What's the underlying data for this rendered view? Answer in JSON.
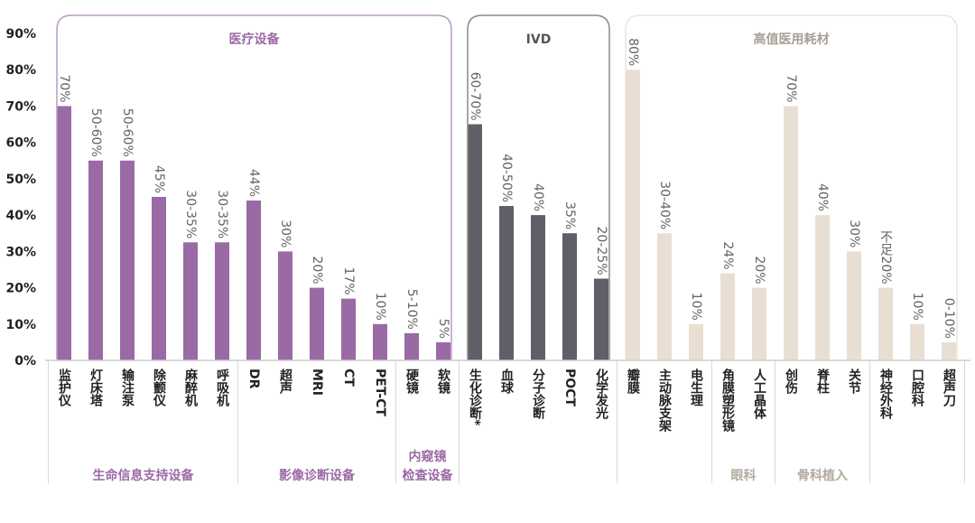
{
  "chart_data": {
    "type": "bar",
    "ylim": [
      0,
      90
    ],
    "yticks": [
      {
        "value": 0,
        "label": "0%"
      },
      {
        "value": 10,
        "label": "10%"
      },
      {
        "value": 20,
        "label": "20%"
      },
      {
        "value": 30,
        "label": "30%"
      },
      {
        "value": 40,
        "label": "40%"
      },
      {
        "value": 50,
        "label": "50%"
      },
      {
        "value": 60,
        "label": "60%"
      },
      {
        "value": 70,
        "label": "70%"
      },
      {
        "value": 80,
        "label": "80%"
      },
      {
        "value": 90,
        "label": "90%"
      }
    ],
    "groups": [
      {
        "title": "医疗设备",
        "color": "#9a6aa5",
        "title_color": "#9a6aa5",
        "border_color": "#b99bc2",
        "label_color": "#9a6aa5",
        "subgroups": [
          {
            "label": [
              "生命信息支持设备"
            ],
            "categories": [
              "监护仪",
              "灯床塔",
              "输注泵",
              "除颤仪",
              "麻醉机",
              "呼吸机"
            ],
            "values": [
              70,
              55,
              55,
              45,
              32.5,
              32.5
            ],
            "value_labels": [
              "70%",
              "50-60%",
              "50-60%",
              "45%",
              "30-35%",
              "30-35%"
            ]
          },
          {
            "label": [
              "影像诊断设备"
            ],
            "categories": [
              "DR",
              "超声",
              "MRI",
              "CT",
              "PET-CT"
            ],
            "values": [
              44,
              30,
              20,
              17,
              10
            ],
            "value_labels": [
              "44%",
              "30%",
              "20%",
              "17%",
              "10%"
            ]
          },
          {
            "label": [
              "内窥镜",
              "检查设备"
            ],
            "categories": [
              "硬镜",
              "软镜"
            ],
            "values": [
              7.5,
              5
            ],
            "value_labels": [
              "5-10%",
              "5%"
            ]
          }
        ]
      },
      {
        "title": "IVD",
        "color": "#5e5f67",
        "title_color": "#555555",
        "border_color": "#8a8a8f",
        "label_color": "#555555",
        "subgroups": [
          {
            "categories": [
              "生化诊断*",
              "血球",
              "分子诊断",
              "POCT",
              "化学发光"
            ],
            "values": [
              65,
              42.5,
              40,
              35,
              22.5
            ],
            "value_labels": [
              "60-70%",
              "40-50%",
              "40%",
              "35%",
              "20-25%"
            ]
          }
        ]
      },
      {
        "title": "高值医用耗材",
        "color": "#e8dfd2",
        "title_color": "#a89f94",
        "border_color": "#ebe5dc",
        "label_color": "#b3aa9e",
        "subgroups": [
          {
            "categories": [
              "瓣膜",
              "主动脉支架",
              "电生理"
            ],
            "values": [
              80,
              35,
              10
            ],
            "value_labels": [
              "80%",
              "30-40%",
              "10%"
            ]
          },
          {
            "label": [
              "眼科"
            ],
            "categories": [
              "角膜塑形镜",
              "人工晶体"
            ],
            "values": [
              24,
              20
            ],
            "value_labels": [
              "24%",
              "20%"
            ]
          },
          {
            "label": [
              "骨科植入"
            ],
            "categories": [
              "创伤",
              "脊柱",
              "关节"
            ],
            "values": [
              70,
              40,
              30
            ],
            "value_labels": [
              "70%",
              "40%",
              "30%"
            ]
          },
          {
            "categories": [
              "神经外科",
              "口腔科",
              "超声刀"
            ],
            "values": [
              20,
              10,
              5
            ],
            "value_labels": [
              "不足20%",
              "10%",
              "0-10%"
            ]
          }
        ]
      }
    ]
  }
}
